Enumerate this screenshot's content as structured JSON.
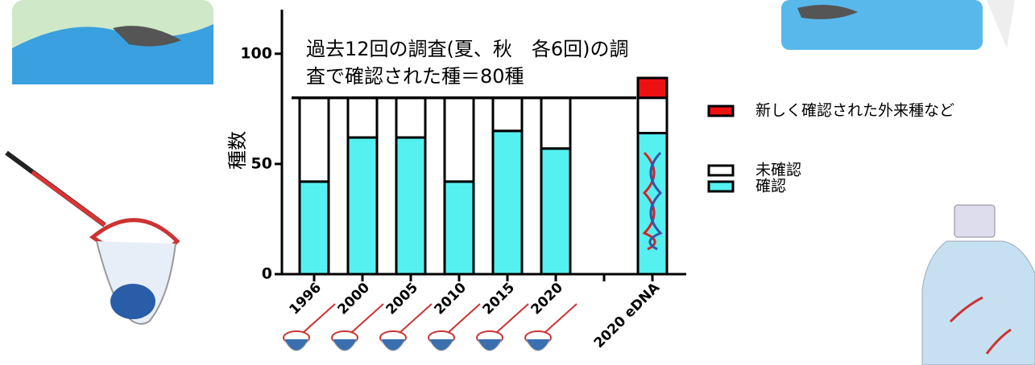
{
  "chart_data": {
    "type": "bar",
    "stacked": true,
    "ylabel": "種数",
    "annotation": [
      "過去12回の調査(夏、秋　各6回)の調",
      "査で確認された種＝80種"
    ],
    "reference_line": 80,
    "categories": [
      "1996",
      "2000",
      "2005",
      "2010",
      "2015",
      "2020",
      null,
      "2020 eDNA"
    ],
    "series": [
      {
        "name": "確認",
        "color": "#55f0f0",
        "values": [
          42,
          62,
          62,
          42,
          65,
          57,
          null,
          64
        ]
      },
      {
        "name": "未確認",
        "color": "#ffffff",
        "values": [
          38,
          18,
          18,
          38,
          15,
          23,
          null,
          16
        ]
      },
      {
        "name": "新しく確認された外来種など",
        "color": "#ee1111",
        "values": [
          null,
          null,
          null,
          null,
          null,
          null,
          null,
          9
        ]
      }
    ],
    "ylim": [
      0,
      120
    ],
    "yticks": [
      0,
      50,
      100
    ],
    "grid": false,
    "legend": "right"
  }
}
